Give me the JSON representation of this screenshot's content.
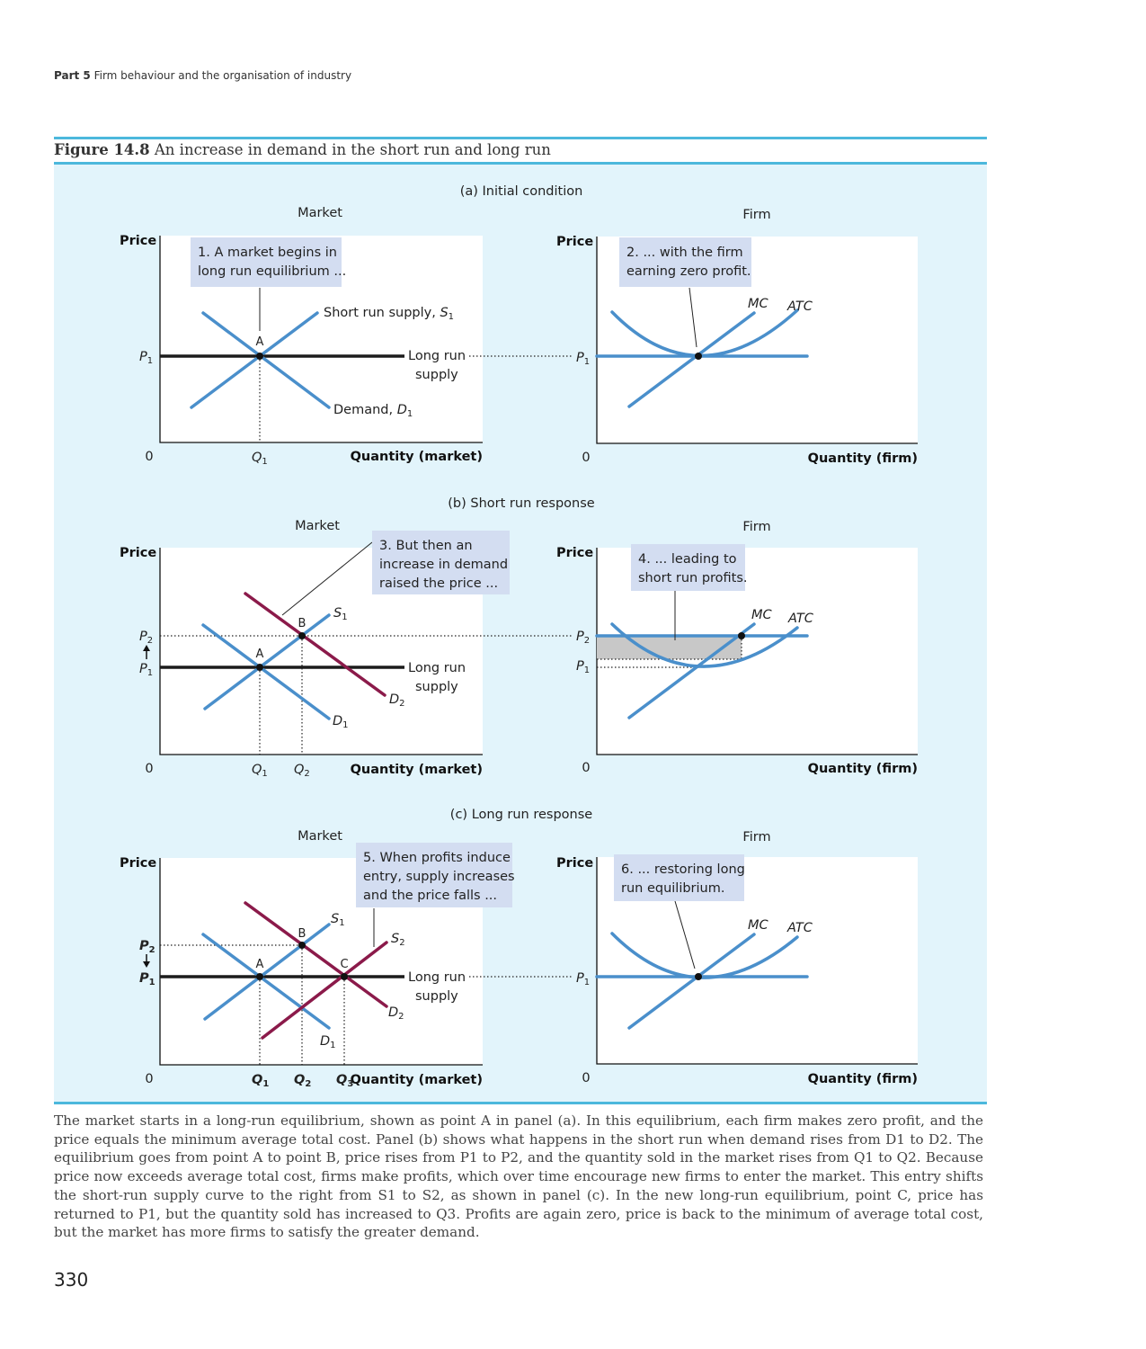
{
  "running_head": {
    "part": "Part 5",
    "title": "Firm behaviour and the organisation of industry"
  },
  "figure": {
    "label": "Figure 14.8",
    "title": "An increase in demand in the short run and long run",
    "colors": {
      "supply_demand_blue": "#4a8fcb",
      "new_curve_maroon": "#8b1a4a",
      "long_run_supply": "#1c1c1c",
      "callout_fill": "#d3ddf1",
      "panel_background": "#e2f4fb",
      "rule": "#4cb8dc",
      "profit_area": "#c8c8c8"
    },
    "panels": [
      {
        "id": "a",
        "heading": "(a) Initial condition",
        "market": {
          "label": "Market",
          "ylabel": "Price",
          "xlabel": "Quantity (market)",
          "origin": "0",
          "price_ticks": [
            "P1"
          ],
          "quantity_ticks": [
            "Q1"
          ],
          "points": [
            "A"
          ],
          "curve_labels": [
            "Short run supply, S1",
            "Demand, D1",
            "Long run",
            "supply"
          ],
          "callout": [
            "1. A market begins in",
            "long run equilibrium ..."
          ]
        },
        "firm": {
          "label": "Firm",
          "ylabel": "Price",
          "xlabel": "Quantity (firm)",
          "origin": "0",
          "price_ticks": [
            "P1"
          ],
          "curve_labels": [
            "MC",
            "ATC"
          ],
          "callout": [
            "2. ... with the firm",
            "earning zero profit."
          ]
        }
      },
      {
        "id": "b",
        "heading": "(b) Short run response",
        "market": {
          "label": "Market",
          "ylabel": "Price",
          "xlabel": "Quantity (market)",
          "origin": "0",
          "price_ticks": [
            "P2",
            "P1"
          ],
          "quantity_ticks": [
            "Q1",
            "Q2"
          ],
          "points": [
            "A",
            "B"
          ],
          "curve_labels": [
            "S1",
            "D1",
            "D2",
            "Long run",
            "supply"
          ],
          "callout": [
            "3. But then an",
            "increase in demand",
            "raised the price ..."
          ]
        },
        "firm": {
          "label": "Firm",
          "ylabel": "Price",
          "xlabel": "Quantity (firm)",
          "origin": "0",
          "price_ticks": [
            "P2",
            "P1"
          ],
          "curve_labels": [
            "MC",
            "ATC"
          ],
          "callout": [
            "4. ... leading to",
            "short run profits."
          ]
        }
      },
      {
        "id": "c",
        "heading": "(c) Long run response",
        "market": {
          "label": "Market",
          "ylabel": "Price",
          "xlabel": "Quantity (market)",
          "origin": "0",
          "price_ticks": [
            "P2",
            "P1"
          ],
          "quantity_ticks": [
            "Q1",
            "Q2",
            "Q3"
          ],
          "points": [
            "A",
            "B",
            "C"
          ],
          "curve_labels": [
            "S1",
            "S2",
            "D1",
            "D2",
            "Long run",
            "supply"
          ],
          "callout": [
            "5. When profits induce",
            "entry, supply increases",
            "and the price falls ..."
          ]
        },
        "firm": {
          "label": "Firm",
          "ylabel": "Price",
          "xlabel": "Quantity (firm)",
          "origin": "0",
          "price_ticks": [
            "P1"
          ],
          "curve_labels": [
            "MC",
            "ATC"
          ],
          "callout": [
            "6. ... restoring long",
            "run equilibrium."
          ]
        }
      }
    ]
  },
  "caption": "The market starts in a long-run equilibrium, shown as point A in panel (a). In this equilibrium, each firm makes zero profit, and the price equals the minimum average total cost. Panel (b) shows what happens in the short run when demand rises from D1 to D2. The equilibrium goes from point A to point B, price rises from P1 to P2, and the quantity sold in the market rises from Q1 to Q2. Because price now exceeds average total cost, firms make profits, which over time encourage new firms to enter the market. This entry shifts the short-run supply curve to the right from S1 to S2, as shown in panel (c). In the new long-run equilibrium, point C, price has returned to P1, but the quantity sold has increased to Q3. Profits are again zero, price is back to the minimum of average total cost, but the market has more firms to satisfy the greater demand.",
  "page_number": "330"
}
